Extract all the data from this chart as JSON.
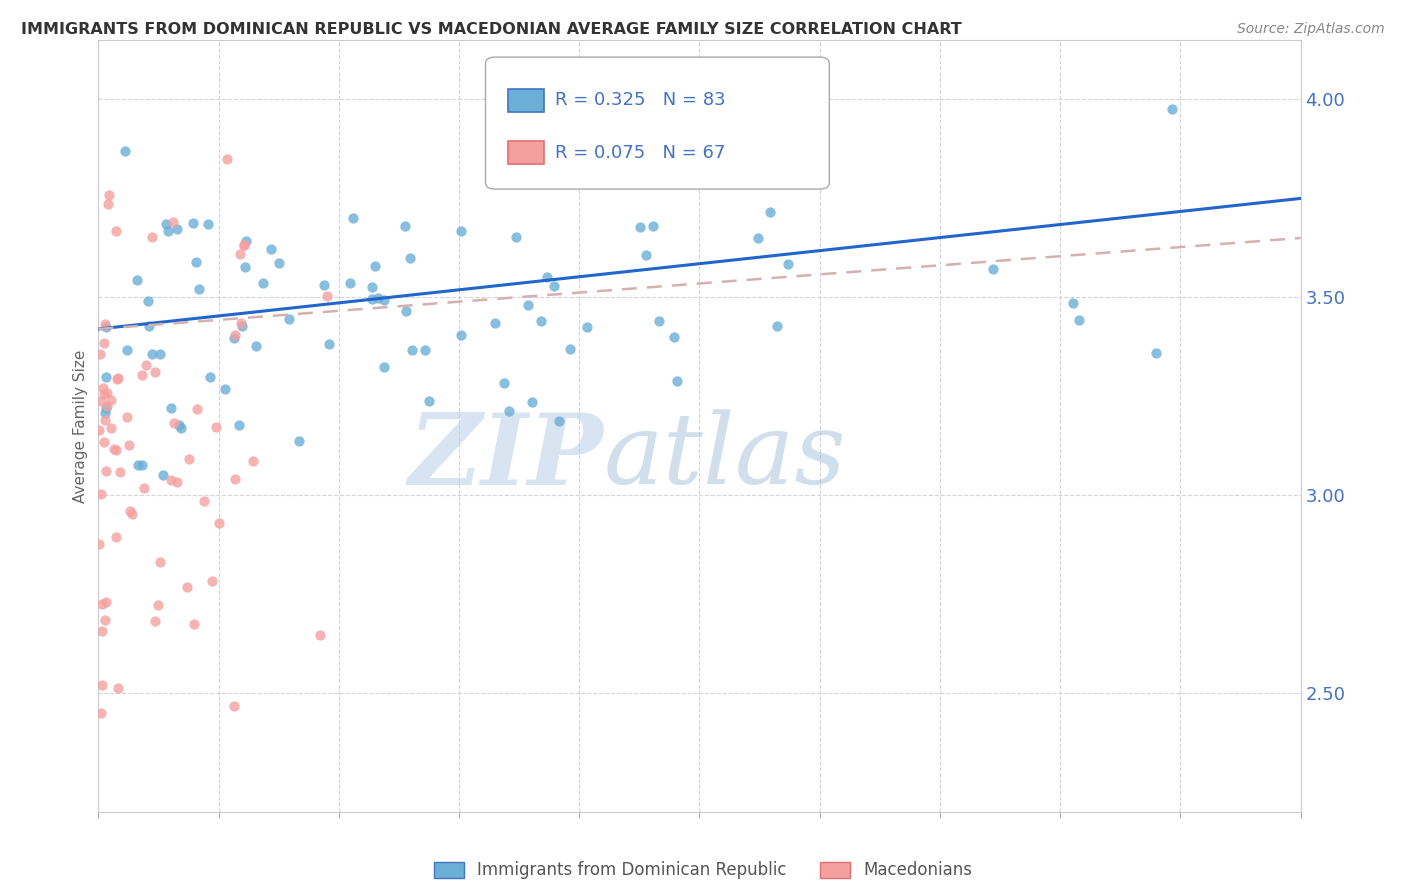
{
  "title": "IMMIGRANTS FROM DOMINICAN REPUBLIC VS MACEDONIAN AVERAGE FAMILY SIZE CORRELATION CHART",
  "source": "Source: ZipAtlas.com",
  "ylabel": "Average Family Size",
  "ymin": 2.2,
  "ymax": 4.15,
  "yticks": [
    2.5,
    3.0,
    3.5,
    4.0
  ],
  "xmin": 0.0,
  "xmax": 60.0,
  "series1_name": "Immigrants from Dominican Republic",
  "series1_color": "#6baed6",
  "series1_R": 0.325,
  "series1_N": 83,
  "series2_name": "Macedonians",
  "series2_color": "#f4a0a0",
  "series2_R": 0.075,
  "series2_N": 67,
  "watermark_zip": "ZIP",
  "watermark_atlas": "atlas",
  "background_color": "#ffffff",
  "grid_color": "#d0d0d0",
  "axis_label_color": "#4472c4",
  "title_color": "#333333"
}
